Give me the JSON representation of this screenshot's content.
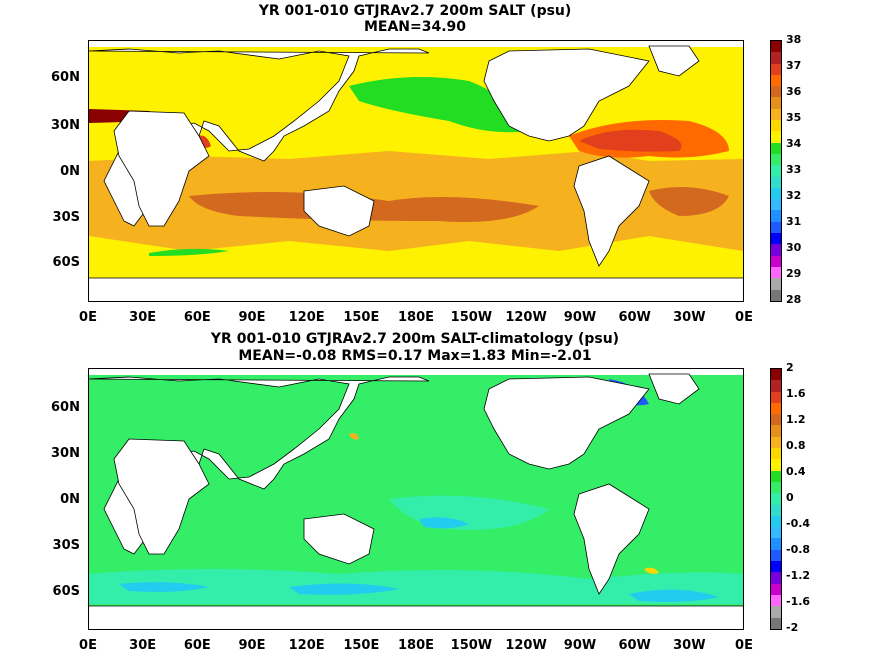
{
  "top_panel": {
    "title_line1": "YR 001-010 GTJRAv2.7 200m SALT (psu)",
    "title_line2": "MEAN=34.90",
    "lat_labels": [
      "60N",
      "30N",
      "0N",
      "30S",
      "60S"
    ],
    "lon_labels": [
      "0E",
      "30E",
      "60E",
      "90E",
      "120E",
      "150E",
      "180E",
      "150W",
      "120W",
      "90W",
      "60W",
      "30W",
      "0E"
    ],
    "colorbar": {
      "labels": [
        "38",
        "37",
        "36",
        "35",
        "34",
        "33",
        "32",
        "31",
        "30",
        "29",
        "28"
      ],
      "colors": [
        "#8b0000",
        "#b22222",
        "#e2401c",
        "#ff6a00",
        "#d2691e",
        "#e8901c",
        "#f5b11e",
        "#ffd700",
        "#fff200",
        "#22dd22",
        "#33ee66",
        "#33eeaa",
        "#33ddcc",
        "#22ccee",
        "#33bbff",
        "#1e90ff",
        "#1e5aff",
        "#0000ff",
        "#7700dd",
        "#cc00cc",
        "#ff66ff",
        "#aaaaaa",
        "#777777"
      ]
    }
  },
  "bottom_panel": {
    "title_line1": "YR 001-010 GTJRAv2.7 200m SALT-climatology (psu)",
    "title_line2": "MEAN=-0.08   RMS=0.17   Max=1.83   Min=-2.01",
    "lat_labels": [
      "60N",
      "30N",
      "0N",
      "30S",
      "60S"
    ],
    "lon_labels": [
      "0E",
      "30E",
      "60E",
      "90E",
      "120E",
      "150E",
      "180E",
      "150W",
      "120W",
      "90W",
      "60W",
      "30W",
      "0E"
    ],
    "colorbar": {
      "labels": [
        "2",
        "1.6",
        "1.2",
        "0.8",
        "0.4",
        "0",
        "-0.4",
        "-0.8",
        "-1.2",
        "-1.6",
        "-2"
      ],
      "colors": [
        "#8b0000",
        "#b22222",
        "#e2401c",
        "#ff6a00",
        "#d2691e",
        "#e8901c",
        "#f5b11e",
        "#ffd700",
        "#fff200",
        "#22dd22",
        "#33ee66",
        "#33eeaa",
        "#33ddcc",
        "#22ccee",
        "#33bbff",
        "#1e90ff",
        "#1e5aff",
        "#0000ff",
        "#7700dd",
        "#cc00cc",
        "#ff66ff",
        "#aaaaaa",
        "#777777"
      ]
    }
  }
}
